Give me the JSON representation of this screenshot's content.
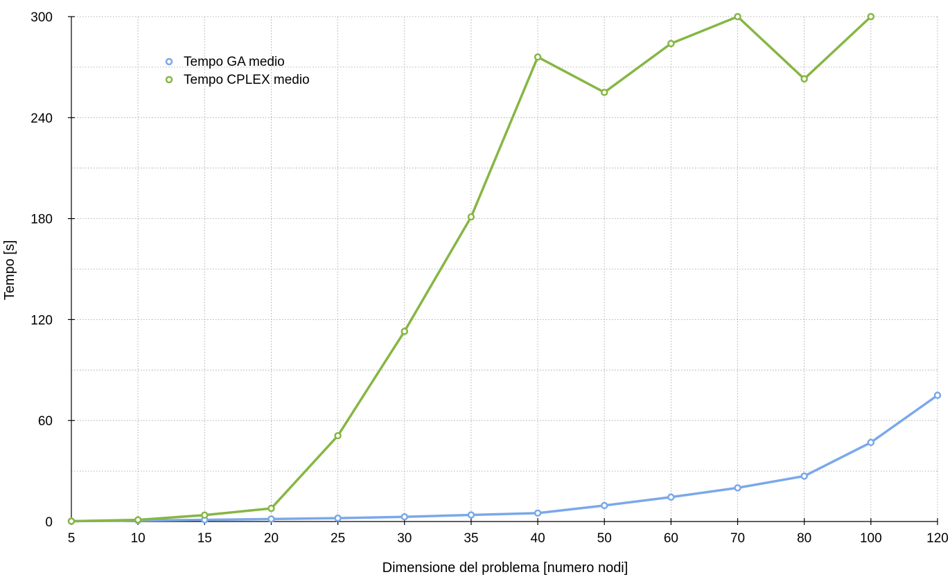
{
  "colors": {
    "ga": "#7aa8ea",
    "cplex": "#86b644",
    "grid": "#9a9a9a",
    "axis": "#000000"
  },
  "chart_data": {
    "type": "line",
    "title": "",
    "xlabel": "Dimensione del problema [numero nodi]",
    "ylabel": "Tempo [s]",
    "ylim": [
      0,
      300
    ],
    "yticks": [
      0,
      60,
      120,
      180,
      240,
      300
    ],
    "grid": true,
    "legend": "top-left",
    "categories": [
      "5",
      "10",
      "15",
      "20",
      "25",
      "30",
      "35",
      "40",
      "50",
      "60",
      "70",
      "80",
      "100",
      "120"
    ],
    "series": [
      {
        "name": "Tempo GA medio",
        "color": "#7aa8ea",
        "values": [
          0.2,
          0.6,
          1.0,
          1.5,
          2.0,
          2.8,
          3.9,
          5.0,
          9.5,
          14.5,
          20.0,
          27.0,
          47.0,
          75.0
        ]
      },
      {
        "name": "Tempo CPLEX medio",
        "color": "#86b644",
        "values": [
          0.2,
          1.0,
          3.8,
          7.8,
          51.0,
          113.0,
          181.0,
          276.0,
          255.0,
          284.0,
          300.0,
          263.0,
          300.0,
          null
        ]
      }
    ]
  }
}
